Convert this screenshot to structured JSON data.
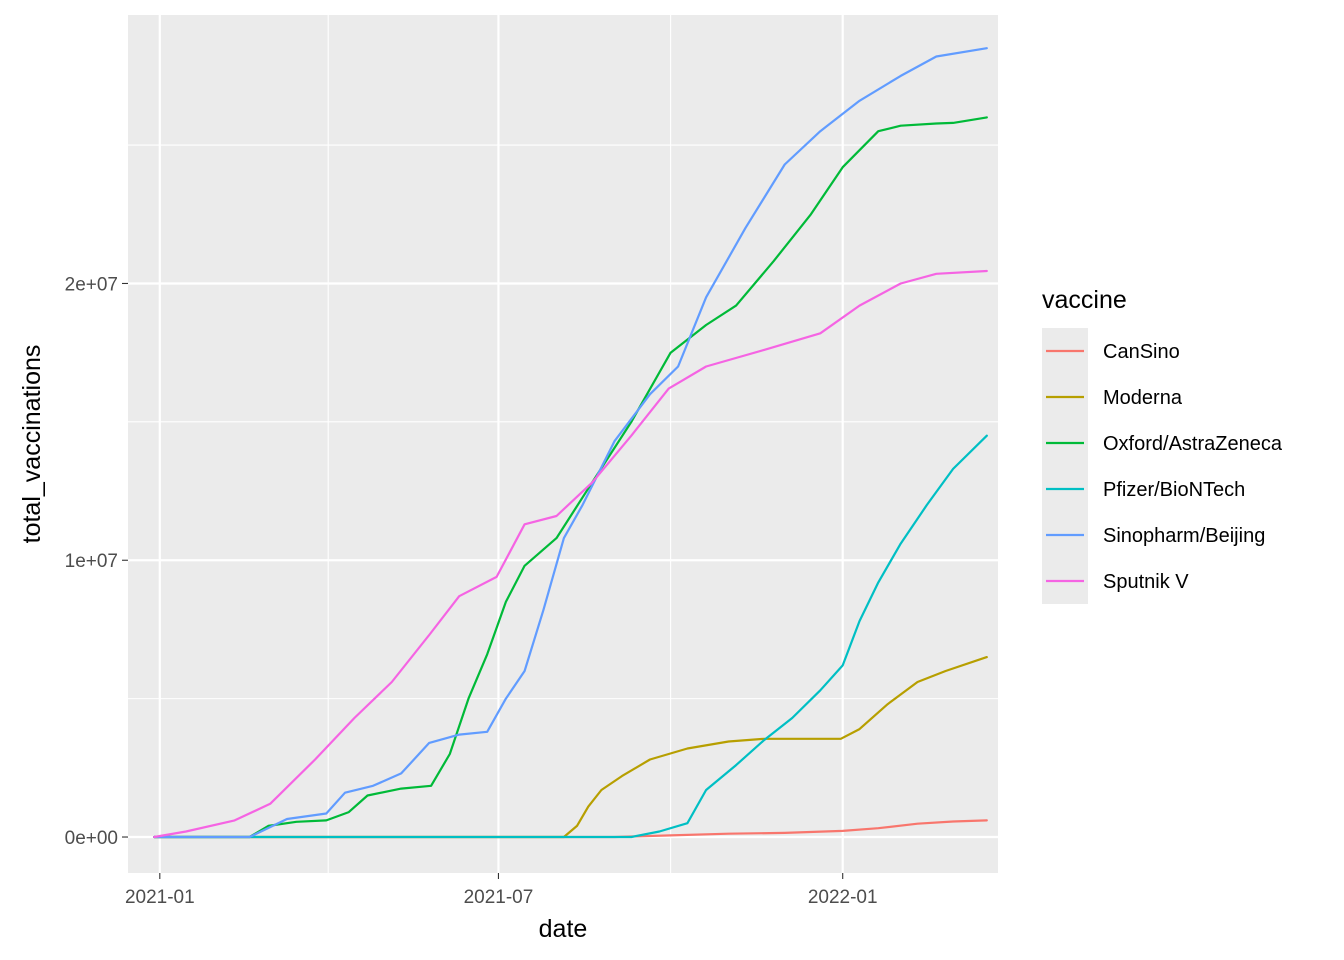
{
  "chart_data": {
    "type": "line",
    "xlabel": "date",
    "ylabel": "total_vaccinations",
    "x_ticks": [
      "2021-01",
      "2021-07",
      "2022-01"
    ],
    "y_ticks": [
      "0e+00",
      "1e+07",
      "2e+07"
    ],
    "xlim": [
      "2020-12-15",
      "2022-03-25"
    ],
    "ylim": [
      -1300000,
      29700000
    ],
    "grid": true,
    "legend_title": "vaccine",
    "legend_position": "right",
    "series": [
      {
        "name": "CanSino",
        "color": "#F8766D",
        "points": [
          [
            "2020-12-29",
            0
          ],
          [
            "2021-09-01",
            0
          ],
          [
            "2021-10-01",
            60000
          ],
          [
            "2021-11-01",
            120000
          ],
          [
            "2021-12-01",
            150000
          ],
          [
            "2022-01-01",
            220000
          ],
          [
            "2022-01-20",
            320000
          ],
          [
            "2022-02-10",
            480000
          ],
          [
            "2022-03-01",
            560000
          ],
          [
            "2022-03-19",
            600000
          ]
        ]
      },
      {
        "name": "Moderna",
        "color": "#B79F00",
        "points": [
          [
            "2020-12-29",
            0
          ],
          [
            "2021-08-05",
            0
          ],
          [
            "2021-08-12",
            400000
          ],
          [
            "2021-08-18",
            1100000
          ],
          [
            "2021-08-25",
            1700000
          ],
          [
            "2021-09-05",
            2200000
          ],
          [
            "2021-09-20",
            2800000
          ],
          [
            "2021-10-10",
            3200000
          ],
          [
            "2021-11-01",
            3450000
          ],
          [
            "2021-11-20",
            3550000
          ],
          [
            "2021-12-31",
            3550000
          ],
          [
            "2022-01-10",
            3900000
          ],
          [
            "2022-01-25",
            4800000
          ],
          [
            "2022-02-10",
            5600000
          ],
          [
            "2022-02-25",
            6000000
          ],
          [
            "2022-03-19",
            6500000
          ]
        ]
      },
      {
        "name": "Oxford/AstraZeneca",
        "color": "#00BA38",
        "points": [
          [
            "2020-12-29",
            0
          ],
          [
            "2021-02-18",
            0
          ],
          [
            "2021-02-28",
            400000
          ],
          [
            "2021-03-15",
            550000
          ],
          [
            "2021-03-31",
            600000
          ],
          [
            "2021-04-12",
            900000
          ],
          [
            "2021-04-22",
            1500000
          ],
          [
            "2021-05-10",
            1750000
          ],
          [
            "2021-05-26",
            1850000
          ],
          [
            "2021-06-05",
            3000000
          ],
          [
            "2021-06-15",
            5000000
          ],
          [
            "2021-06-25",
            6600000
          ],
          [
            "2021-07-05",
            8500000
          ],
          [
            "2021-07-15",
            9800000
          ],
          [
            "2021-08-01",
            10800000
          ],
          [
            "2021-08-20",
            12800000
          ],
          [
            "2021-09-10",
            15000000
          ],
          [
            "2021-10-01",
            17500000
          ],
          [
            "2021-10-20",
            18500000
          ],
          [
            "2021-11-05",
            19200000
          ],
          [
            "2021-11-25",
            20800000
          ],
          [
            "2021-12-15",
            22500000
          ],
          [
            "2022-01-01",
            24200000
          ],
          [
            "2022-01-20",
            25500000
          ],
          [
            "2022-02-01",
            25700000
          ],
          [
            "2022-02-20",
            25780000
          ],
          [
            "2022-03-01",
            25800000
          ],
          [
            "2022-03-19",
            26000000
          ]
        ]
      },
      {
        "name": "Pfizer/BioNTech",
        "color": "#00BFC4",
        "points": [
          [
            "2020-12-29",
            0
          ],
          [
            "2021-09-10",
            0
          ],
          [
            "2021-09-25",
            200000
          ],
          [
            "2021-10-10",
            500000
          ],
          [
            "2021-10-20",
            1700000
          ],
          [
            "2021-11-05",
            2600000
          ],
          [
            "2021-11-20",
            3500000
          ],
          [
            "2021-12-05",
            4300000
          ],
          [
            "2021-12-20",
            5300000
          ],
          [
            "2022-01-01",
            6200000
          ],
          [
            "2022-01-10",
            7800000
          ],
          [
            "2022-01-20",
            9200000
          ],
          [
            "2022-02-01",
            10600000
          ],
          [
            "2022-02-15",
            12000000
          ],
          [
            "2022-03-01",
            13300000
          ],
          [
            "2022-03-19",
            14500000
          ]
        ]
      },
      {
        "name": "Sinopharm/Beijing",
        "color": "#619CFF",
        "points": [
          [
            "2020-12-29",
            0
          ],
          [
            "2021-02-18",
            0
          ],
          [
            "2021-03-10",
            650000
          ],
          [
            "2021-03-31",
            850000
          ],
          [
            "2021-04-10",
            1600000
          ],
          [
            "2021-04-25",
            1850000
          ],
          [
            "2021-05-10",
            2300000
          ],
          [
            "2021-05-25",
            3400000
          ],
          [
            "2021-06-10",
            3700000
          ],
          [
            "2021-06-25",
            3800000
          ],
          [
            "2021-07-05",
            5000000
          ],
          [
            "2021-07-15",
            6000000
          ],
          [
            "2021-07-25",
            8200000
          ],
          [
            "2021-08-05",
            10800000
          ],
          [
            "2021-08-15",
            12000000
          ],
          [
            "2021-09-01",
            14300000
          ],
          [
            "2021-09-20",
            16000000
          ],
          [
            "2021-10-05",
            17000000
          ],
          [
            "2021-10-20",
            19500000
          ],
          [
            "2021-11-10",
            22000000
          ],
          [
            "2021-12-01",
            24300000
          ],
          [
            "2021-12-20",
            25500000
          ],
          [
            "2022-01-10",
            26600000
          ],
          [
            "2022-02-01",
            27500000
          ],
          [
            "2022-02-20",
            28200000
          ],
          [
            "2022-03-19",
            28500000
          ]
        ]
      },
      {
        "name": "Sputnik V",
        "color": "#F564E3",
        "points": [
          [
            "2020-12-29",
            0
          ],
          [
            "2021-01-15",
            200000
          ],
          [
            "2021-02-10",
            600000
          ],
          [
            "2021-03-01",
            1200000
          ],
          [
            "2021-03-25",
            2800000
          ],
          [
            "2021-04-15",
            4300000
          ],
          [
            "2021-05-05",
            5600000
          ],
          [
            "2021-05-25",
            7300000
          ],
          [
            "2021-06-10",
            8700000
          ],
          [
            "2021-06-30",
            9400000
          ],
          [
            "2021-07-15",
            11300000
          ],
          [
            "2021-08-01",
            11600000
          ],
          [
            "2021-08-20",
            12800000
          ],
          [
            "2021-09-10",
            14500000
          ],
          [
            "2021-09-30",
            16200000
          ],
          [
            "2021-10-20",
            17000000
          ],
          [
            "2021-11-20",
            17600000
          ],
          [
            "2021-12-20",
            18200000
          ],
          [
            "2022-01-10",
            19200000
          ],
          [
            "2022-02-01",
            20000000
          ],
          [
            "2022-02-20",
            20350000
          ],
          [
            "2022-03-19",
            20450000
          ]
        ]
      }
    ]
  }
}
